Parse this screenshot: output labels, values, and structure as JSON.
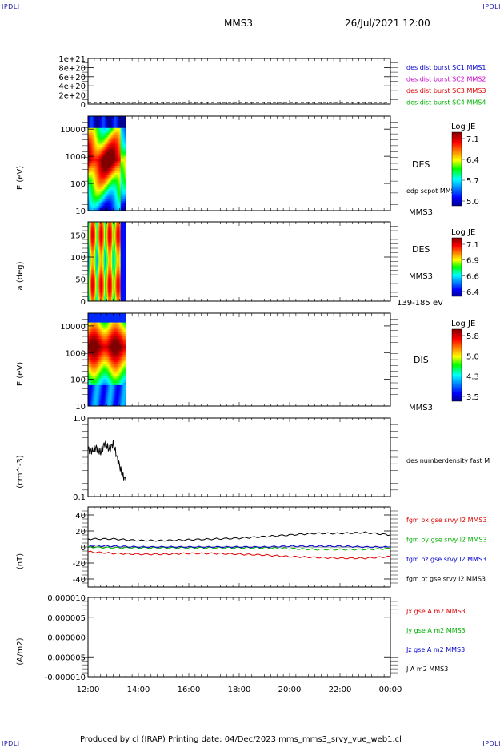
{
  "corners": {
    "top_left": "IPDLI",
    "top_right": "IPDLI",
    "bottom_left": "IPDLI",
    "bottom_right": "IPDLI"
  },
  "header": {
    "title": "MMS3",
    "date": "26/Jul/2021 12:00"
  },
  "footer": {
    "text": "Produced by cl (IRAP)   Printing date: 04/Dec/2023   mms_mms3_srvy_vue_web1.cl"
  },
  "colors": {
    "blue": "#0000cc",
    "magenta": "#cc00cc",
    "red": "#dd0000",
    "green": "#00b000",
    "black": "#000000"
  },
  "chart_data": [
    {
      "id": "dist",
      "type": "line",
      "yticks": [
        "1e+21",
        "8e+20",
        "6e+20",
        "4e+20",
        "2e+20",
        "0"
      ],
      "ylim": [
        0,
        1e+21
      ],
      "legend": [
        {
          "text": "des dist burst SC1 MMS1",
          "color": "#0000cc"
        },
        {
          "text": "des dist burst SC2 MMS2",
          "color": "#cc00cc"
        },
        {
          "text": "des dist burst SC3 MMS3",
          "color": "#dd0000"
        },
        {
          "text": "des dist burst SC4 MMS4",
          "color": "#00b000"
        }
      ],
      "series": [
        {
          "values": [
            0,
            0
          ],
          "x": [
            "12:00",
            "00:00"
          ],
          "style": "dashed"
        }
      ]
    },
    {
      "id": "des_e",
      "type": "heatmap",
      "ylabel": "E (eV)",
      "yticks": [
        "10000",
        "1000",
        "100",
        "10"
      ],
      "log_y": true,
      "ylim": [
        10,
        30000
      ],
      "label": "DES",
      "sublabel": "edp scpot MMS3",
      "bottom_label": "MMS3",
      "colorbar": {
        "title": "Log JE",
        "ticks": [
          "7.1",
          "6.4",
          "5.7",
          "5.0"
        ],
        "range": [
          5.0,
          7.1
        ]
      },
      "time_range": [
        "12:00",
        "13:30"
      ]
    },
    {
      "id": "des_pa",
      "type": "heatmap",
      "ylabel": "a (deg)",
      "yticks": [
        "150",
        "100",
        "50",
        "0"
      ],
      "ylim": [
        0,
        180
      ],
      "label": "DES",
      "sublabel": "MMS3",
      "bottom_label": "139-185 eV",
      "colorbar": {
        "title": "Log JE",
        "ticks": [
          "7.1",
          "6.9",
          "6.6",
          "6.4"
        ],
        "range": [
          6.4,
          7.1
        ]
      },
      "time_range": [
        "12:00",
        "13:30"
      ]
    },
    {
      "id": "dis_e",
      "type": "heatmap",
      "ylabel": "E (eV)",
      "yticks": [
        "10000",
        "1000",
        "100",
        "10"
      ],
      "log_y": true,
      "ylim": [
        10,
        30000
      ],
      "label": "DIS",
      "bottom_label": "MMS3",
      "colorbar": {
        "title": "Log JE",
        "ticks": [
          "5.8",
          "5.0",
          "4.3",
          "3.5"
        ],
        "range": [
          3.5,
          5.8
        ]
      },
      "time_range": [
        "12:00",
        "13:30"
      ]
    },
    {
      "id": "dens",
      "type": "line",
      "ylabel": "(cm^-3)",
      "yticks": [
        "1.0",
        "0.1"
      ],
      "log_y": true,
      "ylim": [
        0.1,
        1.0
      ],
      "legend": [
        {
          "text": "des numberdensity fast M",
          "color": "#000000"
        }
      ],
      "series": [
        {
          "x": [
            "12:00",
            "12:10",
            "12:20",
            "12:30",
            "12:40",
            "12:50",
            "13:00",
            "13:10",
            "13:20",
            "13:30"
          ],
          "values": [
            0.4,
            0.38,
            0.42,
            0.36,
            0.48,
            0.4,
            0.47,
            0.3,
            0.2,
            0.16
          ]
        }
      ]
    },
    {
      "id": "fgm",
      "type": "line",
      "ylabel": "(nT)",
      "yticks": [
        "40",
        "20",
        "0",
        "-20",
        "-40"
      ],
      "ylim": [
        -50,
        50
      ],
      "legend": [
        {
          "text": "fgm bx gse srvy l2 MMS3",
          "color": "#dd0000"
        },
        {
          "text": "fgm by gse srvy l2 MMS3",
          "color": "#00b000"
        },
        {
          "text": "fgm bz gse srvy l2 MMS3",
          "color": "#0000cc"
        },
        {
          "text": "fgm bt gse srvy l2 MMS3",
          "color": "#000000"
        }
      ],
      "x": [
        "12:00",
        "13:00",
        "14:00",
        "15:00",
        "16:00",
        "17:00",
        "18:00",
        "19:00",
        "20:00",
        "21:00",
        "22:00",
        "23:00",
        "00:00"
      ],
      "series": [
        {
          "name": "fgm bx gse srvy l2 MMS3",
          "values": [
            -6,
            -8,
            -9,
            -9,
            -8,
            -8,
            -9,
            -10,
            -12,
            -13,
            -14,
            -14,
            -12
          ]
        },
        {
          "name": "fgm by gse srvy l2 MMS3",
          "values": [
            0,
            -1,
            -1,
            -1,
            -1,
            -1,
            -1,
            -1,
            -2,
            -3,
            -3,
            -3,
            -2
          ]
        },
        {
          "name": "fgm bz gse srvy l2 MMS3",
          "values": [
            2,
            1,
            0,
            0,
            0,
            0,
            0,
            0,
            1,
            1,
            1,
            0,
            0
          ]
        },
        {
          "name": "fgm bt gse srvy l2 MMS3",
          "values": [
            10,
            10,
            8,
            8,
            9,
            10,
            11,
            13,
            15,
            17,
            17,
            18,
            15
          ]
        }
      ]
    },
    {
      "id": "jcur",
      "type": "line",
      "ylabel": "(A/m2)",
      "yticks": [
        "0.000010",
        "0.000005",
        "0.000000",
        "-0.000005",
        "-0.000010"
      ],
      "ylim": [
        -1e-05,
        1e-05
      ],
      "legend": [
        {
          "text": "Jx gse A m2 MMS3",
          "color": "#dd0000"
        },
        {
          "text": "Jy gse A m2 MMS3",
          "color": "#00b000"
        },
        {
          "text": "Jz gse A m2 MMS3",
          "color": "#0000cc"
        },
        {
          "text": "J A m2 MMS3",
          "color": "#000000"
        }
      ],
      "series": [
        {
          "values": [
            0,
            0
          ],
          "x": [
            "12:00",
            "00:00"
          ]
        }
      ]
    }
  ],
  "xaxis": {
    "ticks": [
      "12:00",
      "14:00",
      "16:00",
      "18:00",
      "20:00",
      "22:00",
      "00:00"
    ]
  }
}
